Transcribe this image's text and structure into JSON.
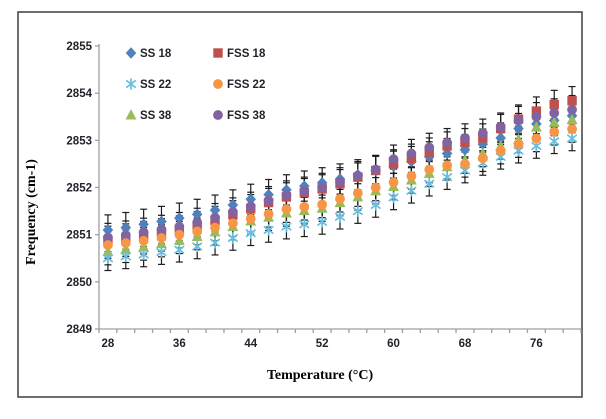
{
  "figure": {
    "background": "#ffffff",
    "frame_border_color": "#4a4a4c"
  },
  "chart_data": {
    "type": "scatter",
    "title": "",
    "xlabel": "Temperature (°C)",
    "ylabel": "Frequency (cm-1)",
    "x_categories": [
      28,
      30,
      32,
      34,
      36,
      38,
      40,
      42,
      44,
      46,
      48,
      50,
      52,
      54,
      56,
      58,
      60,
      62,
      64,
      66,
      68,
      70,
      72,
      74,
      76,
      78,
      80
    ],
    "x_label_every": 4,
    "ylim": [
      2849,
      2855
    ],
    "y_tick_step": 1,
    "grid": false,
    "legend_position": "top-left-inside",
    "tick_text_color": "#21242b",
    "axis_line_color": "#9aa0a6",
    "error_bar_color": "#1c1c1c",
    "series": [
      {
        "name": "SS 18",
        "marker": "diamond",
        "color": "#4F81BD",
        "error": 0.32,
        "values": [
          2851.1,
          2851.15,
          2851.22,
          2851.28,
          2851.35,
          2851.43,
          2851.52,
          2851.63,
          2851.75,
          2851.85,
          2851.95,
          2852.03,
          2852.1,
          2852.18,
          2852.27,
          2852.36,
          2852.45,
          2852.55,
          2852.65,
          2852.72,
          2852.8,
          2852.92,
          2853.05,
          2853.25,
          2853.35,
          2853.42,
          2853.52
        ]
      },
      {
        "name": "FSS 18",
        "marker": "square",
        "color": "#C0504D",
        "error": 0.3,
        "values": [
          2850.88,
          2850.93,
          2850.98,
          2851.04,
          2851.1,
          2851.19,
          2851.3,
          2851.42,
          2851.55,
          2851.68,
          2851.8,
          2851.89,
          2851.97,
          2852.08,
          2852.22,
          2852.36,
          2852.5,
          2852.62,
          2852.75,
          2852.88,
          2852.95,
          2853.05,
          2853.25,
          2853.45,
          2853.62,
          2853.76,
          2853.84
        ]
      },
      {
        "name": "SS 38",
        "marker": "triangle",
        "color": "#9BBB59",
        "error": 0.28,
        "values": [
          2850.64,
          2850.69,
          2850.74,
          2850.81,
          2850.88,
          2850.96,
          2851.06,
          2851.17,
          2851.29,
          2851.37,
          2851.46,
          2851.51,
          2851.56,
          2851.68,
          2851.8,
          2851.93,
          2852.02,
          2852.16,
          2852.3,
          2852.44,
          2852.58,
          2852.72,
          2852.88,
          2853.02,
          2853.28,
          2853.38,
          2853.44
        ]
      },
      {
        "name": "FSS 38",
        "marker": "circle",
        "color": "#8064A2",
        "error": 0.3,
        "values": [
          2850.94,
          2850.99,
          2851.05,
          2851.11,
          2851.17,
          2851.26,
          2851.36,
          2851.48,
          2851.6,
          2851.72,
          2851.84,
          2851.92,
          2852.0,
          2852.12,
          2852.25,
          2852.38,
          2852.6,
          2852.72,
          2852.85,
          2852.95,
          2853.05,
          2853.15,
          2853.28,
          2853.42,
          2853.5,
          2853.58,
          2853.65
        ]
      },
      {
        "name": "SS 22",
        "marker": "asterisk",
        "color": "#68BEE0",
        "error": 0.26,
        "values": [
          2850.5,
          2850.54,
          2850.58,
          2850.63,
          2850.68,
          2850.75,
          2850.83,
          2850.93,
          2851.03,
          2851.1,
          2851.17,
          2851.22,
          2851.27,
          2851.38,
          2851.5,
          2851.63,
          2851.79,
          2851.93,
          2852.08,
          2852.22,
          2852.36,
          2852.52,
          2852.65,
          2852.78,
          2852.88,
          2852.98,
          2853.04
        ]
      },
      {
        "name": "FSS 22",
        "marker": "circle",
        "color": "#F79646",
        "error": 0.28,
        "values": [
          2850.78,
          2850.82,
          2850.87,
          2850.93,
          2851.0,
          2851.07,
          2851.15,
          2851.24,
          2851.34,
          2851.44,
          2851.54,
          2851.59,
          2851.64,
          2851.76,
          2851.88,
          2852.0,
          2852.11,
          2852.24,
          2852.38,
          2852.47,
          2852.5,
          2852.62,
          2852.78,
          2852.92,
          2853.04,
          2853.18,
          2853.24
        ]
      }
    ],
    "legend_rows": [
      [
        "SS 18",
        "FSS 18"
      ],
      [
        "SS 22",
        "FSS 22"
      ],
      [
        "SS 38",
        "FSS 38"
      ]
    ]
  }
}
